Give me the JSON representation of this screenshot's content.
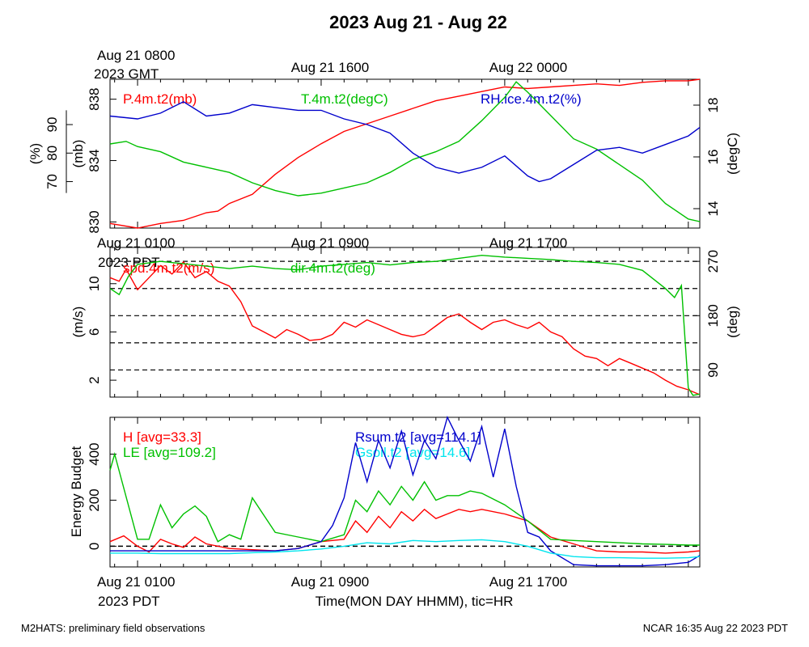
{
  "title": "2023 Aug 21 - Aug 22",
  "footer_left": "M2HATS: preliminary field observations",
  "footer_right": "NCAR 16:35 Aug 22 2023 PDT",
  "colors": {
    "red": "#ff0000",
    "green": "#00c000",
    "blue": "#0000cc",
    "cyan": "#00e5ee",
    "black": "#000000"
  },
  "chart_data": [
    {
      "type": "line",
      "panel": "top",
      "top_time_labels": [
        "Aug 21 0800",
        "Aug 21 1600",
        "Aug 22 0000"
      ],
      "top_time_label_hours": [
        0,
        8,
        16
      ],
      "zone_label": "2023 GMT",
      "x_range_hours": [
        -1.2,
        24.5
      ],
      "axes": {
        "rh": {
          "label": "(%)",
          "ticks": [
            70,
            80,
            90
          ],
          "range": [
            53.7,
            105.9
          ]
        },
        "pres": {
          "label": "(mb)",
          "ticks": [
            830,
            834,
            838
          ],
          "range": [
            829.6,
            839.3
          ]
        },
        "temp": {
          "label": "(degC)",
          "ticks": [
            14,
            16,
            18
          ],
          "range": [
            13.25,
            19.0
          ]
        }
      },
      "series": [
        {
          "name": "P.4m.t2(mb)",
          "color": "red",
          "axis": "pres",
          "x": [
            -1.2,
            0,
            1,
            2,
            3,
            3.5,
            4,
            5,
            6,
            7,
            8,
            9,
            10,
            11,
            12,
            13,
            14,
            15,
            16,
            17,
            18,
            19,
            20,
            21,
            22,
            23,
            24,
            24.5
          ],
          "y": [
            829.9,
            829.6,
            829.9,
            830.1,
            830.6,
            830.7,
            831.2,
            831.8,
            833.1,
            834.2,
            835.1,
            835.9,
            836.4,
            836.9,
            837.4,
            837.9,
            838.2,
            838.5,
            838.8,
            838.7,
            838.8,
            838.9,
            839.0,
            838.9,
            839.1,
            839.2,
            839.2,
            839.3
          ]
        },
        {
          "name": "T.4m.t2(degC)",
          "color": "green",
          "axis": "temp",
          "x": [
            -1.2,
            -0.5,
            0,
            1,
            2,
            3,
            4,
            5,
            6,
            7,
            8,
            9,
            10,
            11,
            12,
            13,
            14,
            15,
            16,
            16.5,
            17,
            18,
            19,
            20,
            21,
            22,
            23,
            24,
            24.5
          ],
          "y": [
            16.5,
            16.6,
            16.4,
            16.2,
            15.8,
            15.6,
            15.4,
            15.0,
            14.7,
            14.5,
            14.6,
            14.8,
            15.0,
            15.4,
            15.9,
            16.2,
            16.6,
            17.4,
            18.3,
            18.9,
            18.5,
            17.6,
            16.7,
            16.3,
            15.7,
            15.1,
            14.2,
            13.6,
            13.5
          ]
        },
        {
          "name": "RH.ice.4m.t2(%)",
          "color": "blue",
          "axis": "rh",
          "x": [
            -1.2,
            0,
            1,
            2,
            3,
            4,
            5,
            6,
            7,
            8,
            9,
            10,
            11,
            12,
            13,
            14,
            15,
            16,
            17,
            17.5,
            18,
            19,
            20,
            21,
            22,
            23,
            24,
            24.5
          ],
          "y": [
            93,
            92,
            94,
            98,
            93,
            94,
            97,
            96,
            95,
            95,
            92,
            90,
            87,
            80,
            75,
            73,
            75,
            79,
            72,
            70,
            71,
            76,
            81,
            82,
            80,
            83,
            86,
            89
          ]
        }
      ],
      "legend": [
        "P.4m.t2(mb)",
        "T.4m.t2(degC)",
        "RH.ice.4m.t2(%)"
      ]
    },
    {
      "type": "line",
      "panel": "middle",
      "time_labels": [
        "Aug 21 0100",
        "Aug 21 0900",
        "Aug 21 1700"
      ],
      "time_label_hours": [
        0,
        8,
        16
      ],
      "zone_label": "2023 PDT",
      "x_range_hours": [
        -1.2,
        24.5
      ],
      "axes": {
        "spd": {
          "label": "(m/s)",
          "ticks": [
            2,
            6,
            10
          ],
          "range": [
            0.6,
            13.0
          ]
        },
        "dir": {
          "label": "(deg)",
          "ticks": [
            90,
            180,
            270
          ],
          "range": [
            45,
            293
          ],
          "dashed_lines": [
            45,
            90,
            135,
            180,
            225,
            270
          ]
        }
      },
      "series": [
        {
          "name": "spd.4m.t2(m/s)",
          "color": "red",
          "axis": "spd",
          "x": [
            -1.2,
            -0.8,
            -0.5,
            0,
            0.5,
            1,
            1.5,
            2,
            2.5,
            3,
            3.5,
            4,
            4.5,
            5,
            5.5,
            6,
            6.5,
            7,
            7.5,
            8,
            8.5,
            9,
            9.5,
            10,
            10.5,
            11,
            11.5,
            12,
            12.5,
            13,
            13.5,
            14,
            14.5,
            15,
            15.5,
            16,
            16.5,
            17,
            17.5,
            18,
            18.5,
            19,
            19.5,
            20,
            20.5,
            21,
            21.5,
            22,
            22.5,
            23,
            23.5,
            24,
            24.5
          ],
          "y": [
            10.5,
            10.2,
            11.2,
            9.5,
            10.5,
            11.5,
            10.8,
            11.8,
            10.5,
            11.0,
            10.2,
            9.8,
            8.5,
            6.5,
            6.0,
            5.5,
            6.2,
            5.8,
            5.3,
            5.4,
            5.8,
            6.8,
            6.4,
            7.0,
            6.6,
            6.2,
            5.8,
            5.6,
            5.8,
            6.5,
            7.2,
            7.5,
            6.8,
            6.2,
            6.8,
            7.0,
            6.6,
            6.3,
            6.8,
            6.0,
            5.6,
            4.6,
            4.0,
            3.8,
            3.2,
            3.8,
            3.4,
            3.0,
            2.6,
            2.0,
            1.5,
            1.2,
            0.8
          ]
        },
        {
          "name": "dir.4m.t2(deg)",
          "color": "green",
          "axis": "dir",
          "x": [
            -1.2,
            -0.8,
            -0.4,
            0,
            1,
            2,
            3,
            4,
            5,
            6,
            7,
            8,
            9,
            10,
            11,
            12,
            13,
            14,
            15,
            16,
            17,
            18,
            19,
            20,
            21,
            22,
            23,
            23.4,
            23.7,
            24,
            24.2,
            24.5
          ],
          "y": [
            225,
            215,
            245,
            265,
            270,
            266,
            262,
            258,
            262,
            258,
            256,
            262,
            265,
            268,
            264,
            268,
            270,
            275,
            280,
            277,
            275,
            273,
            270,
            268,
            265,
            255,
            225,
            210,
            230,
            60,
            48,
            50
          ]
        }
      ],
      "legend": [
        "spd.4m.t2(m/s)",
        "dir.4m.t2(deg)"
      ]
    },
    {
      "type": "line",
      "panel": "bottom",
      "title": "",
      "ylabel": "Energy Budget",
      "xlabel": "Time(MON DAY HHMM), tic=HR",
      "time_labels": [
        "Aug 21 0100",
        "Aug 21 0900",
        "Aug 21 1700"
      ],
      "time_label_hours": [
        0,
        8,
        16
      ],
      "zone_label": "2023 PDT",
      "x_range_hours": [
        -1.2,
        24.5
      ],
      "ylim": [
        -90,
        560
      ],
      "yticks": [
        0,
        200,
        400
      ],
      "zero_line": true,
      "series": [
        {
          "name": "H",
          "legend": "H [avg=33.3]",
          "color": "red",
          "x": [
            -1.2,
            -0.6,
            0,
            0.5,
            1,
            1.5,
            2,
            2.5,
            3,
            4,
            5,
            6,
            7,
            8,
            9,
            9.5,
            10,
            10.5,
            11,
            11.5,
            12,
            12.5,
            13,
            13.5,
            14,
            14.5,
            15,
            16,
            17,
            18,
            19,
            20,
            21,
            22,
            23,
            24,
            24.5
          ],
          "y": [
            20,
            45,
            0,
            -25,
            30,
            10,
            -5,
            40,
            10,
            -10,
            -15,
            -20,
            -10,
            20,
            30,
            110,
            60,
            130,
            80,
            150,
            110,
            160,
            120,
            140,
            160,
            150,
            160,
            140,
            110,
            40,
            10,
            -20,
            -25,
            -25,
            -30,
            -25,
            -20
          ]
        },
        {
          "name": "LE",
          "legend": "LE [avg=109.2]",
          "color": "green",
          "x": [
            -1.2,
            -1.0,
            0,
            0.5,
            1,
            1.5,
            2,
            2.5,
            3,
            3.5,
            4,
            4.5,
            5,
            6,
            7,
            8,
            9,
            9.5,
            10,
            10.5,
            11,
            11.5,
            12,
            12.5,
            13,
            13.5,
            14,
            14.5,
            15,
            16,
            17,
            18,
            19,
            20,
            21,
            22,
            23,
            24,
            24.5
          ],
          "y": [
            330,
            400,
            30,
            30,
            180,
            80,
            140,
            175,
            130,
            20,
            50,
            30,
            210,
            60,
            40,
            20,
            50,
            200,
            150,
            240,
            180,
            260,
            200,
            280,
            200,
            220,
            220,
            240,
            230,
            180,
            110,
            30,
            25,
            20,
            15,
            10,
            8,
            5,
            5
          ]
        },
        {
          "name": "Rsum",
          "legend": "Rsum.t2 [avg=114.1]",
          "color": "blue",
          "x": [
            -1.2,
            0,
            1,
            2,
            3,
            4,
            5,
            6,
            7,
            8,
            8.5,
            9,
            9.5,
            10,
            10.5,
            11,
            11.5,
            12,
            12.5,
            13,
            13.5,
            14,
            14.5,
            15,
            15.5,
            16,
            16.5,
            17,
            17.5,
            18,
            19,
            20,
            21,
            22,
            23,
            24,
            24.5
          ],
          "y": [
            -20,
            -20,
            -20,
            -20,
            -20,
            -20,
            -20,
            -20,
            -10,
            20,
            90,
            210,
            450,
            280,
            460,
            340,
            500,
            310,
            460,
            380,
            560,
            460,
            370,
            520,
            300,
            510,
            260,
            60,
            40,
            -20,
            -80,
            -85,
            -85,
            -85,
            -80,
            -70,
            -40
          ]
        },
        {
          "name": "Gsoil",
          "legend": "Gsoil.t2 [avg=14.6]",
          "color": "cyan",
          "x": [
            -1.2,
            0,
            1,
            2,
            3,
            4,
            5,
            6,
            7,
            8,
            9,
            10,
            11,
            12,
            13,
            14,
            15,
            16,
            17,
            18,
            19,
            20,
            21,
            22,
            23,
            24,
            24.5
          ],
          "y": [
            -30,
            -30,
            -32,
            -32,
            -32,
            -32,
            -28,
            -25,
            -20,
            -12,
            0,
            15,
            10,
            25,
            20,
            25,
            28,
            20,
            0,
            -30,
            -45,
            -50,
            -50,
            -52,
            -52,
            -50,
            -45
          ]
        }
      ],
      "legend": [
        "H [avg=33.3]",
        "LE [avg=109.2]",
        "Rsum.t2 [avg=114.1]",
        "Gsoil.t2 [avg=14.6]"
      ]
    }
  ]
}
